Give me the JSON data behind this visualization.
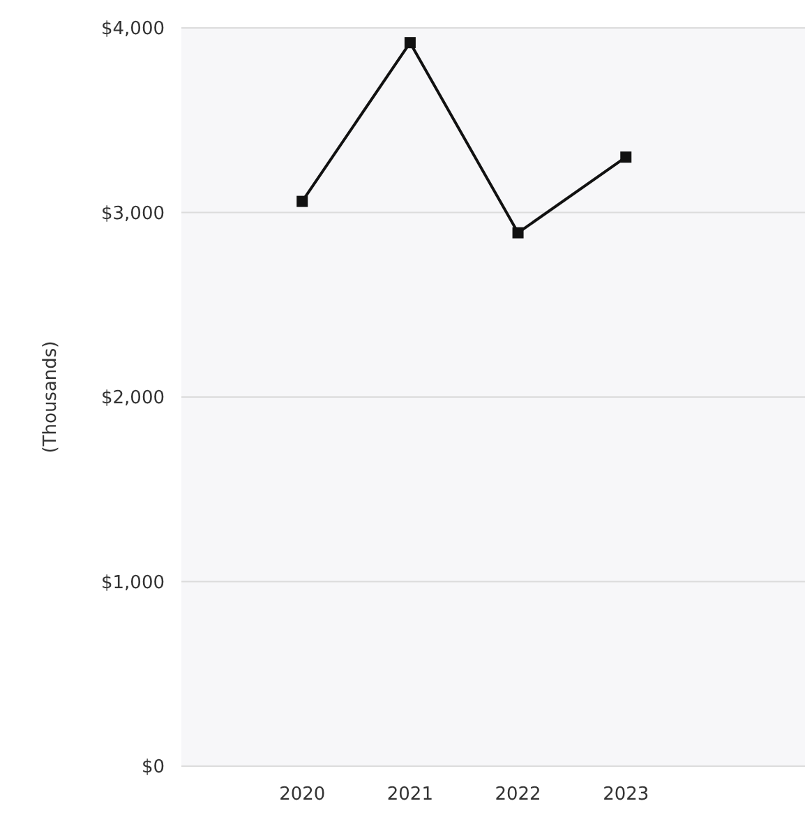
{
  "chart_data": {
    "type": "line",
    "ylabel": "(Thousands)",
    "categories": [
      "2020",
      "2021",
      "2022",
      "2023"
    ],
    "series": [
      {
        "color": "#111111",
        "values": [
          3060,
          3920,
          2890,
          3300
        ]
      }
    ],
    "ylim": [
      0,
      4000
    ],
    "yticks": [
      {
        "value": 0,
        "label": "$0"
      },
      {
        "value": 1000,
        "label": "$1,000"
      },
      {
        "value": 2000,
        "label": "$2,000"
      },
      {
        "value": 3000,
        "label": "$3,000"
      },
      {
        "value": 4000,
        "label": "$4,000"
      }
    ],
    "grid": "y",
    "marker": "square",
    "line_style": "solid"
  }
}
